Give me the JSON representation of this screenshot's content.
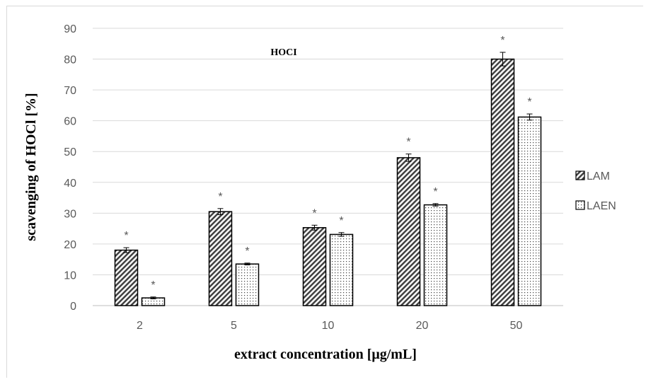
{
  "chart_data": {
    "type": "bar",
    "title": "HOCI",
    "xlabel": "extract concentration [μg/mL]",
    "ylabel": "scavenging of HOCl [%]",
    "categories": [
      "2",
      "5",
      "10",
      "20",
      "50"
    ],
    "ylim": [
      0,
      90
    ],
    "yticks": [
      0,
      10,
      20,
      30,
      40,
      50,
      60,
      70,
      80,
      90
    ],
    "grid": true,
    "legend_position": "right",
    "significance_marker": "*",
    "series": [
      {
        "name": "LAM",
        "values": [
          18,
          30.5,
          25.3,
          48,
          80
        ],
        "errors": [
          0.8,
          1.0,
          0.8,
          1.2,
          2.2
        ],
        "pattern": "diagonal-hatch",
        "color": "#404040"
      },
      {
        "name": "LAEN",
        "values": [
          2.5,
          13.5,
          23.1,
          32.7,
          61.2
        ],
        "errors": [
          0.3,
          0.3,
          0.6,
          0.4,
          1.0
        ],
        "pattern": "dots",
        "color": "#404040"
      }
    ]
  }
}
